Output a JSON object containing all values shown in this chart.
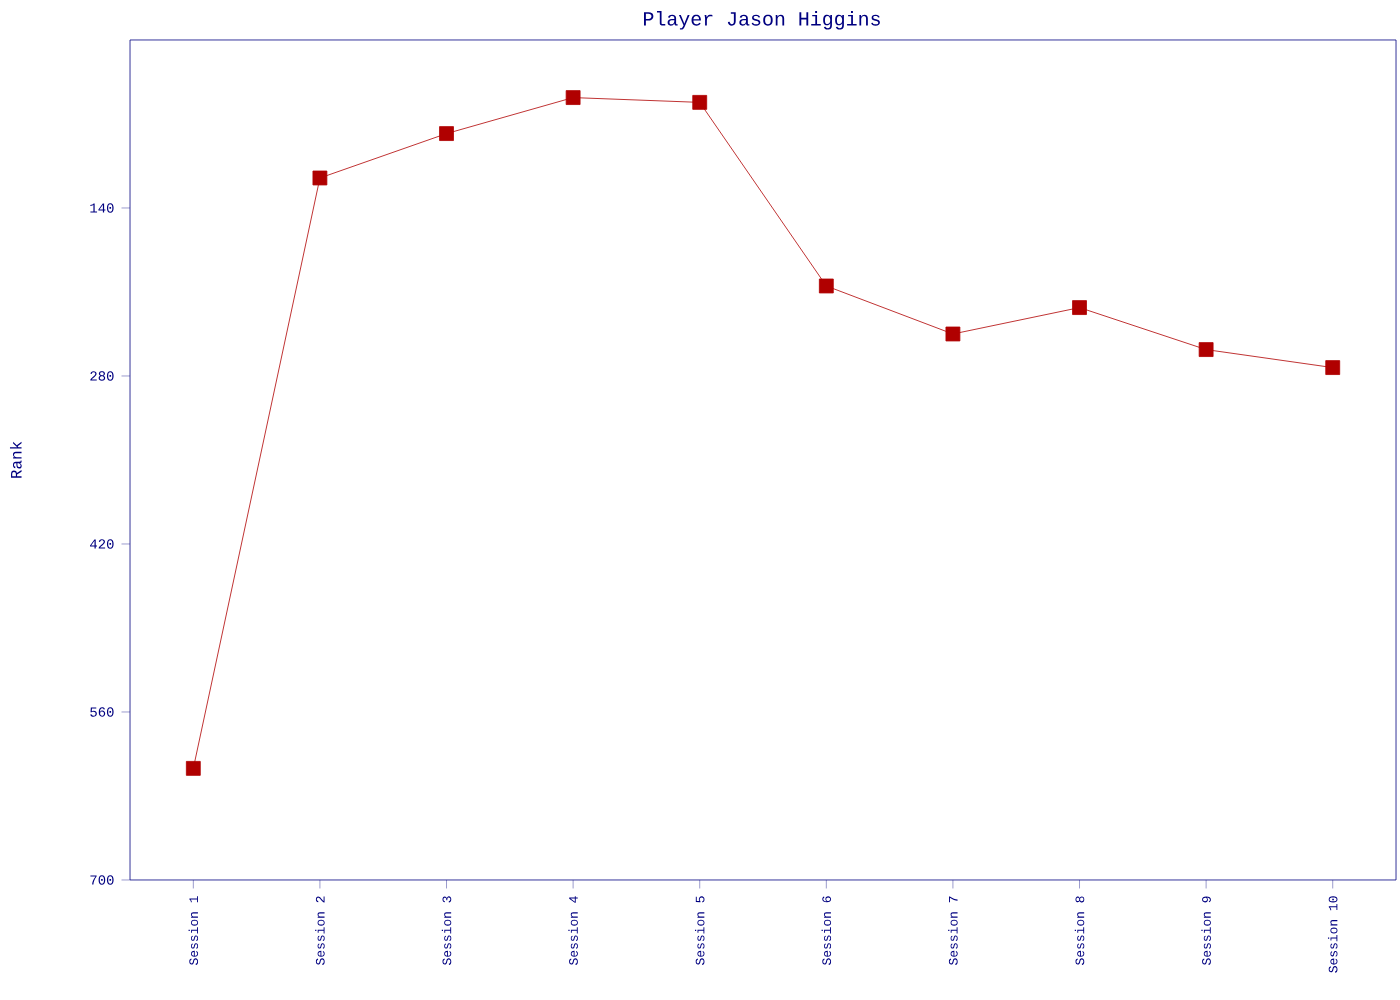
{
  "chart_data": {
    "type": "line",
    "title": "Player Jason Higgins",
    "ylabel": "Rank",
    "categories": [
      "Session 1",
      "Session 2",
      "Session 3",
      "Session 4",
      "Session 5",
      "Session 6",
      "Session 7",
      "Session 8",
      "Session 9",
      "Session 10"
    ],
    "series": [
      {
        "color": "#b00000",
        "values": [
          607,
          115,
          78,
          48,
          52,
          205,
          245,
          223,
          258,
          273
        ]
      }
    ],
    "ylim": [
      700,
      0
    ],
    "yticks": [
      140,
      280,
      420,
      560,
      700
    ],
    "marker": "square",
    "line_style": "solid",
    "grid": false
  }
}
